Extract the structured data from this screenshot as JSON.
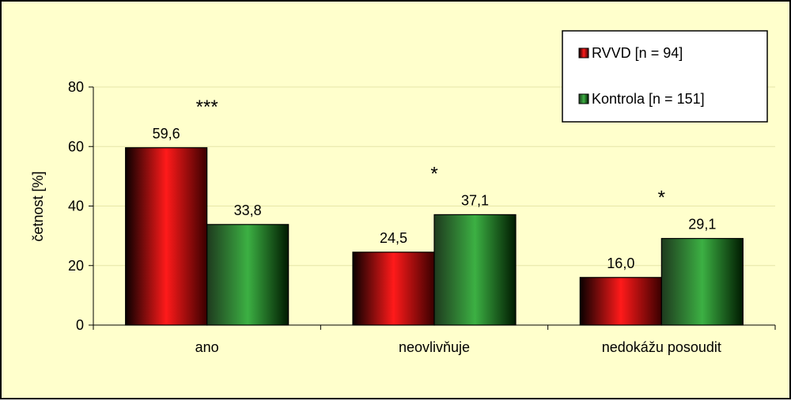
{
  "chart_data": {
    "type": "bar",
    "ylabel": "četnost [%]",
    "ylim": [
      0,
      80
    ],
    "yticks": [
      0,
      20,
      40,
      60,
      80
    ],
    "grid": true,
    "legend_position": "top-right",
    "categories": [
      "ano",
      "neovlivňuje",
      "nedokážu posoudit"
    ],
    "series": [
      {
        "name": "RVVD [n = 94]",
        "values": [
          59.6,
          24.5,
          16.0
        ],
        "labels": [
          "59,6",
          "24,5",
          "16,0"
        ],
        "color": "#ff0000"
      },
      {
        "name": "Kontrola [n = 151]",
        "values": [
          33.8,
          37.1,
          29.1
        ],
        "labels": [
          "33,8",
          "37,1",
          "29,1"
        ],
        "color": "#33aa33"
      }
    ],
    "significance": [
      "***",
      "*",
      "*"
    ]
  },
  "colors": {
    "background": "#ffffcc",
    "border": "#000000",
    "grid": "#e6e6a8"
  }
}
